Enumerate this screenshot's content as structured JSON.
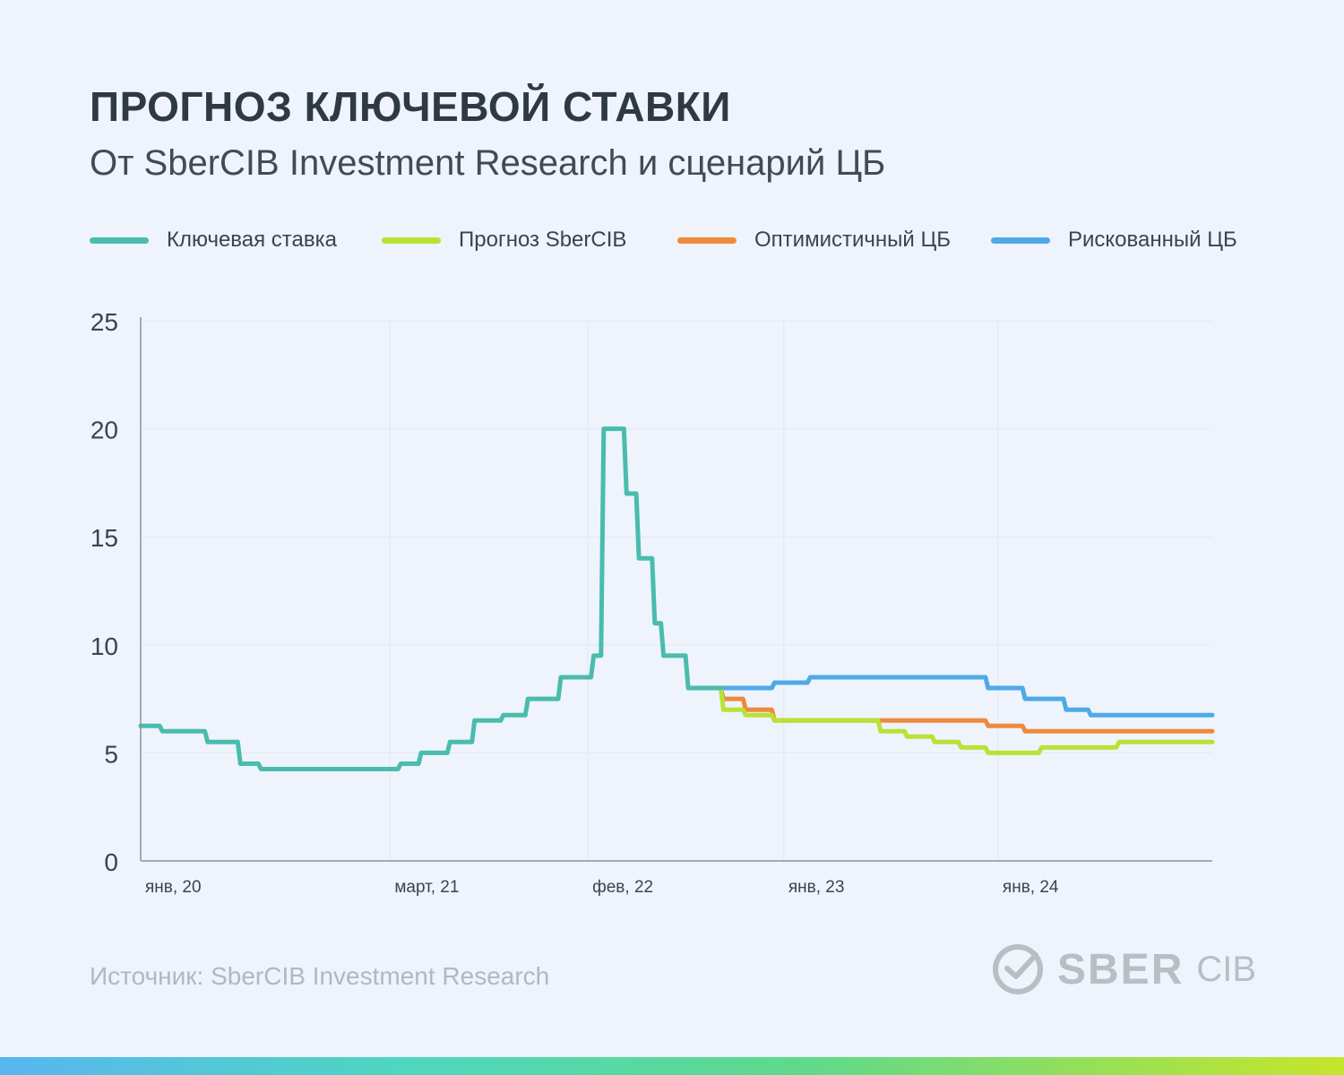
{
  "title": "ПРОГНОЗ КЛЮЧЕВОЙ СТАВКИ",
  "subtitle": "От SberCIB Investment Research и сценарий ЦБ",
  "source": "Источник: SberCIB Investment Research",
  "logo": {
    "bold": "SBER",
    "light": "CIB",
    "icon": "sber-check-icon"
  },
  "colors": {
    "background": "#eef3fc",
    "key_rate": "#49bcad",
    "forecast": "#b8e234",
    "optimistic": "#ee8a3c",
    "risky": "#4eaae6",
    "axis": "#8a939c",
    "grid": "#e2e8f2"
  },
  "chart_data": {
    "type": "line",
    "title": "ПРОГНОЗ КЛЮЧЕВОЙ СТАВКИ",
    "subtitle": "От SberCIB Investment Research и сценарий ЦБ",
    "x_tick_labels": [
      "янв, 20",
      "март, 21",
      "фев, 22",
      "янв, 23",
      "янв, 24"
    ],
    "x_ticks": [
      "2020-01",
      "2021-03",
      "2022-02",
      "2023-01",
      "2024-01"
    ],
    "x_range": [
      "2020-01",
      "2024-12"
    ],
    "ylim": [
      0,
      25
    ],
    "y_ticks": [
      0,
      5,
      10,
      15,
      20,
      25
    ],
    "grid": true,
    "legend_position": "top",
    "series": [
      {
        "name": "Ключевая ставка",
        "color": "#49bcad",
        "points": [
          [
            "2020-01-01",
            6.25
          ],
          [
            "2020-02-07",
            6.0
          ],
          [
            "2020-04-24",
            5.5
          ],
          [
            "2020-06-19",
            4.5
          ],
          [
            "2020-07-24",
            4.25
          ],
          [
            "2021-03-19",
            4.5
          ],
          [
            "2021-04-23",
            5.0
          ],
          [
            "2021-06-11",
            5.5
          ],
          [
            "2021-07-23",
            6.5
          ],
          [
            "2021-09-10",
            6.75
          ],
          [
            "2021-10-22",
            7.5
          ],
          [
            "2021-12-17",
            8.5
          ],
          [
            "2022-02-11",
            9.5
          ],
          [
            "2022-02-28",
            20.0
          ],
          [
            "2022-04-08",
            17.0
          ],
          [
            "2022-04-29",
            14.0
          ],
          [
            "2022-05-26",
            11.0
          ],
          [
            "2022-06-10",
            9.5
          ],
          [
            "2022-07-22",
            8.0
          ],
          [
            "2022-09-16",
            8.0
          ]
        ]
      },
      {
        "name": "Прогноз SberCIB",
        "color": "#b8e234",
        "points": [
          [
            "2022-09-16",
            8.0
          ],
          [
            "2022-09-20",
            7.0
          ],
          [
            "2022-10-28",
            6.75
          ],
          [
            "2022-12-16",
            6.5
          ],
          [
            "2023-06-15",
            6.0
          ],
          [
            "2023-07-30",
            5.75
          ],
          [
            "2023-09-15",
            5.5
          ],
          [
            "2023-10-30",
            5.25
          ],
          [
            "2023-12-15",
            5.0
          ],
          [
            "2024-03-15",
            5.25
          ],
          [
            "2024-07-25",
            5.5
          ],
          [
            "2024-12-31",
            5.5
          ]
        ]
      },
      {
        "name": "Оптимистичный ЦБ",
        "color": "#ee8a3c",
        "points": [
          [
            "2022-09-16",
            8.0
          ],
          [
            "2022-09-20",
            7.5
          ],
          [
            "2022-10-28",
            7.0
          ],
          [
            "2022-12-16",
            6.5
          ],
          [
            "2023-12-15",
            6.25
          ],
          [
            "2024-02-16",
            6.0
          ],
          [
            "2024-12-31",
            6.0
          ]
        ]
      },
      {
        "name": "Рискованный ЦБ",
        "color": "#4eaae6",
        "points": [
          [
            "2022-09-16",
            8.0
          ],
          [
            "2022-12-16",
            8.25
          ],
          [
            "2023-02-15",
            8.5
          ],
          [
            "2023-12-15",
            8.0
          ],
          [
            "2024-02-16",
            7.5
          ],
          [
            "2024-04-26",
            7.0
          ],
          [
            "2024-06-07",
            6.75
          ],
          [
            "2024-12-31",
            6.75
          ]
        ]
      }
    ]
  }
}
